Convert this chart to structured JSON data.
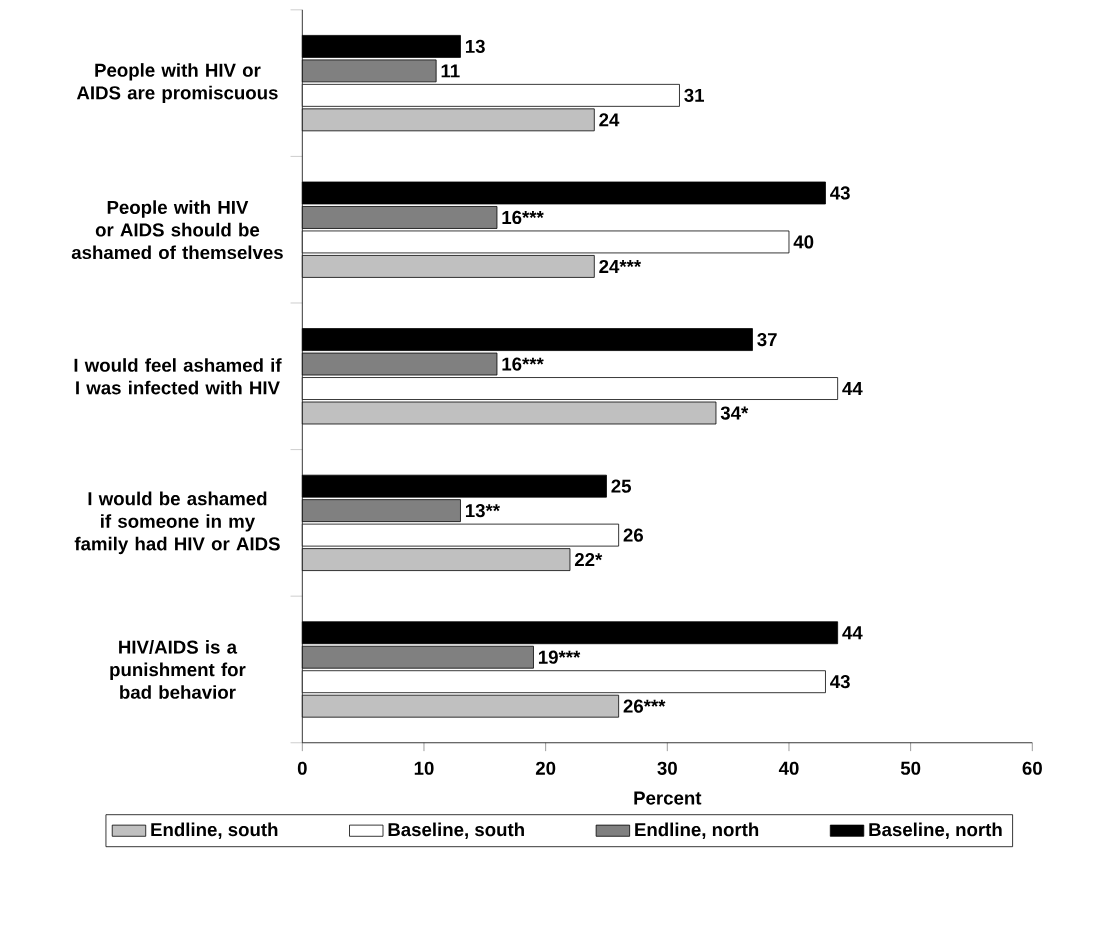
{
  "chart_data": {
    "type": "bar",
    "orientation": "horizontal",
    "xlabel": "Percent",
    "categories": [
      "People with HIV or AIDS are promiscuous",
      "People with HIV or AIDS should be ashamed of themselves",
      "I would feel ashamed if I was infected with HIV",
      "I would be ashamed if someone in my family had HIV or AIDS",
      "HIV/AIDS is a punishment for bad behavior"
    ],
    "series": [
      {
        "name": "Endline, south",
        "color": "#c0c0c0",
        "values": [
          24,
          24,
          34,
          22,
          26
        ],
        "value_labels": [
          "24",
          "24***",
          "34*",
          "22*",
          "26***"
        ]
      },
      {
        "name": "Baseline, south",
        "color": "#ffffff",
        "values": [
          31,
          40,
          44,
          26,
          43
        ],
        "value_labels": [
          "31",
          "40",
          "44",
          "26",
          "43"
        ]
      },
      {
        "name": "Endline, north",
        "color": "#808080",
        "values": [
          11,
          16,
          16,
          13,
          19
        ],
        "value_labels": [
          "11",
          "16***",
          "16***",
          "13**",
          "19***"
        ]
      },
      {
        "name": "Baseline, north",
        "color": "#000000",
        "values": [
          13,
          43,
          37,
          25,
          44
        ],
        "value_labels": [
          "13",
          "43",
          "37",
          "25",
          "44"
        ]
      }
    ],
    "xlim": [
      0,
      60
    ],
    "xticks": [
      0,
      10,
      20,
      30,
      40,
      50,
      60
    ],
    "legend": "bottom"
  }
}
